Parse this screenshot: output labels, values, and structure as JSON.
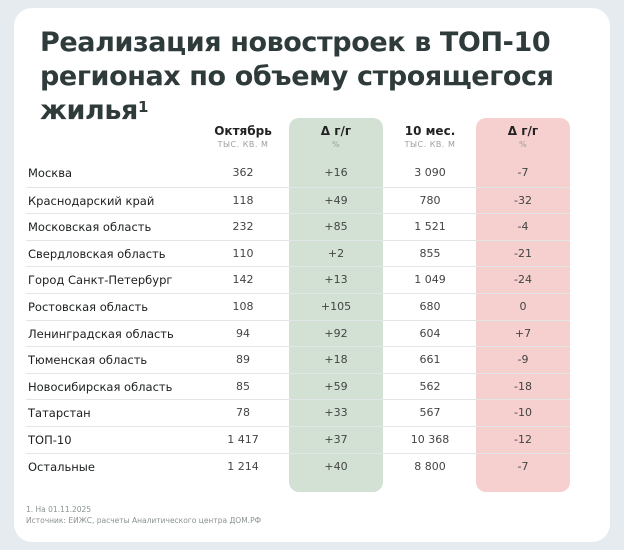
{
  "title_line1": "Реализация новостроек в ТОП-10",
  "title_line2": "регионах по объему строящегося",
  "title_line3": "жилья",
  "title_sup": "1",
  "headers": {
    "october": "Октябрь",
    "october_unit": "ТЫС. КВ. М",
    "delta1": "Δ г/г",
    "delta1_unit": "%",
    "ten_months": "10 мес.",
    "ten_months_unit": "ТЫС. КВ. М",
    "delta2": "Δ г/г",
    "delta2_unit": "%"
  },
  "rows": [
    {
      "name": "Москва",
      "oct": "362",
      "d1": "+16",
      "m10": "3 090",
      "d2": "-7"
    },
    {
      "name": "Краснодарский край",
      "oct": "118",
      "d1": "+49",
      "m10": "780",
      "d2": "-32"
    },
    {
      "name": "Московская область",
      "oct": "232",
      "d1": "+85",
      "m10": "1 521",
      "d2": "-4"
    },
    {
      "name": "Свердловская область",
      "oct": "110",
      "d1": "+2",
      "m10": "855",
      "d2": "-21"
    },
    {
      "name": "Город Санкт-Петербург",
      "oct": "142",
      "d1": "+13",
      "m10": "1 049",
      "d2": "-24"
    },
    {
      "name": "Ростовская область",
      "oct": "108",
      "d1": "+105",
      "m10": "680",
      "d2": "0"
    },
    {
      "name": "Ленинградская область",
      "oct": "94",
      "d1": "+92",
      "m10": "604",
      "d2": "+7"
    },
    {
      "name": "Тюменская область",
      "oct": "89",
      "d1": "+18",
      "m10": "661",
      "d2": "-9"
    },
    {
      "name": "Новосибирская область",
      "oct": "85",
      "d1": "+59",
      "m10": "562",
      "d2": "-18"
    },
    {
      "name": "Татарстан",
      "oct": "78",
      "d1": "+33",
      "m10": "567",
      "d2": "-10"
    },
    {
      "name": "ТОП-10",
      "oct": "1 417",
      "d1": "+37",
      "m10": "10 368",
      "d2": "-12"
    },
    {
      "name": "Остальные",
      "oct": "1 214",
      "d1": "+40",
      "m10": "8 800",
      "d2": "-7"
    }
  ],
  "footnote1": "1. На 01.11.2025",
  "footnote2": "Источник: ЕИЖС, расчеты Аналитического центра ДОМ.РФ",
  "colors": {
    "green_col": "#d2e1d4",
    "red_col": "#f6cfcf"
  }
}
